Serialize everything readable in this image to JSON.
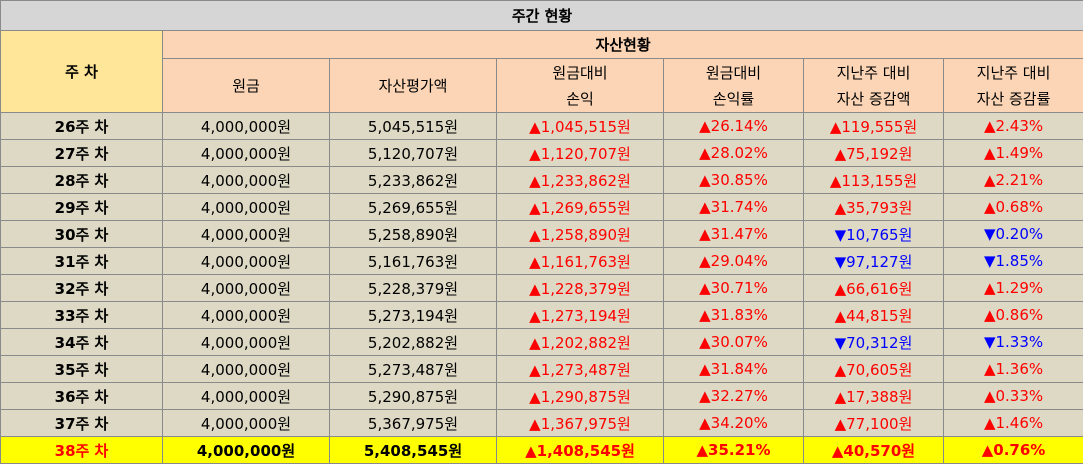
{
  "table": {
    "title": "주간 현황",
    "week_header": "주 차",
    "group_header": "자산현황",
    "columns": [
      {
        "l1": "원금",
        "l2": ""
      },
      {
        "l1": "자산평가액",
        "l2": ""
      },
      {
        "l1": "원금대비",
        "l2": "손익"
      },
      {
        "l1": "원금대비",
        "l2": "손익률"
      },
      {
        "l1": "지난주 대비",
        "l2": "자산 증감액"
      },
      {
        "l1": "지난주 대비",
        "l2": "자산 증감률"
      }
    ],
    "rows": [
      {
        "week": "26주 차",
        "principal": "4,000,000원",
        "value": "5,045,515원",
        "pl": "▲1,045,515원",
        "pl_rate": "▲26.14%",
        "wow": "▲119,555원",
        "wow_rate": "▲2.43%",
        "wow_dir": "up",
        "wow_rate_dir": "up"
      },
      {
        "week": "27주 차",
        "principal": "4,000,000원",
        "value": "5,120,707원",
        "pl": "▲1,120,707원",
        "pl_rate": "▲28.02%",
        "wow": "▲75,192원",
        "wow_rate": "▲1.49%",
        "wow_dir": "up",
        "wow_rate_dir": "up"
      },
      {
        "week": "28주 차",
        "principal": "4,000,000원",
        "value": "5,233,862원",
        "pl": "▲1,233,862원",
        "pl_rate": "▲30.85%",
        "wow": "▲113,155원",
        "wow_rate": "▲2.21%",
        "wow_dir": "up",
        "wow_rate_dir": "up"
      },
      {
        "week": "29주 차",
        "principal": "4,000,000원",
        "value": "5,269,655원",
        "pl": "▲1,269,655원",
        "pl_rate": "▲31.74%",
        "wow": "▲35,793원",
        "wow_rate": "▲0.68%",
        "wow_dir": "up",
        "wow_rate_dir": "up"
      },
      {
        "week": "30주 차",
        "principal": "4,000,000원",
        "value": "5,258,890원",
        "pl": "▲1,258,890원",
        "pl_rate": "▲31.47%",
        "wow": "▼10,765원",
        "wow_rate": "▼0.20%",
        "wow_dir": "down",
        "wow_rate_dir": "down"
      },
      {
        "week": "31주 차",
        "principal": "4,000,000원",
        "value": "5,161,763원",
        "pl": "▲1,161,763원",
        "pl_rate": "▲29.04%",
        "wow": "▼97,127원",
        "wow_rate": "▼1.85%",
        "wow_dir": "down",
        "wow_rate_dir": "down"
      },
      {
        "week": "32주 차",
        "principal": "4,000,000원",
        "value": "5,228,379원",
        "pl": "▲1,228,379원",
        "pl_rate": "▲30.71%",
        "wow": "▲66,616원",
        "wow_rate": "▲1.29%",
        "wow_dir": "up",
        "wow_rate_dir": "up"
      },
      {
        "week": "33주 차",
        "principal": "4,000,000원",
        "value": "5,273,194원",
        "pl": "▲1,273,194원",
        "pl_rate": "▲31.83%",
        "wow": "▲44,815원",
        "wow_rate": "▲0.86%",
        "wow_dir": "up",
        "wow_rate_dir": "up"
      },
      {
        "week": "34주 차",
        "principal": "4,000,000원",
        "value": "5,202,882원",
        "pl": "▲1,202,882원",
        "pl_rate": "▲30.07%",
        "wow": "▼70,312원",
        "wow_rate": "▼1.33%",
        "wow_dir": "down",
        "wow_rate_dir": "down"
      },
      {
        "week": "35주 차",
        "principal": "4,000,000원",
        "value": "5,273,487원",
        "pl": "▲1,273,487원",
        "pl_rate": "▲31.84%",
        "wow": "▲70,605원",
        "wow_rate": "▲1.36%",
        "wow_dir": "up",
        "wow_rate_dir": "up"
      },
      {
        "week": "36주 차",
        "principal": "4,000,000원",
        "value": "5,290,875원",
        "pl": "▲1,290,875원",
        "pl_rate": "▲32.27%",
        "wow": "▲17,388원",
        "wow_rate": "▲0.33%",
        "wow_dir": "up",
        "wow_rate_dir": "up"
      },
      {
        "week": "37주 차",
        "principal": "4,000,000원",
        "value": "5,367,975원",
        "pl": "▲1,367,975원",
        "pl_rate": "▲34.20%",
        "wow": "▲77,100원",
        "wow_rate": "▲1.46%",
        "wow_dir": "up",
        "wow_rate_dir": "up"
      },
      {
        "week": "38주 차",
        "principal": "4,000,000원",
        "value": "5,408,545원",
        "pl": "▲1,408,545원",
        "pl_rate": "▲35.21%",
        "wow": "▲40,570원",
        "wow_rate": "▲0.76%",
        "wow_dir": "up",
        "wow_rate_dir": "up"
      }
    ],
    "highlight_row": 12,
    "colors": {
      "title_bg": "#d6d6d6",
      "header_bg": "#fbd5b5",
      "week_header_bg": "#ffe699",
      "row_bg": "#ddd9c4",
      "highlight_bg": "#ffff00",
      "up": "#ff0000",
      "down": "#0000ff"
    }
  }
}
